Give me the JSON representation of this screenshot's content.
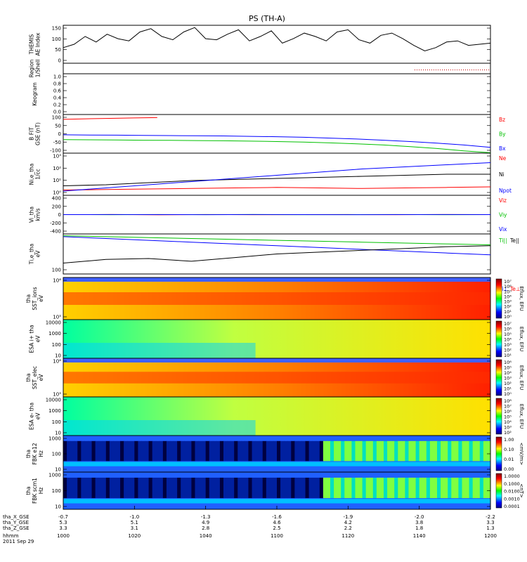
{
  "title": "PS (TH-A)",
  "date_label": "2011 Sep 29",
  "colors": {
    "bx": "#0000ff",
    "by": "#00c000",
    "bz": "#ff0000",
    "ne": "#ff0000",
    "ni": "#000000",
    "npot": "#0000ff"
  },
  "chart_data": {
    "type": "line",
    "x_axis": {
      "label": "hhmm",
      "ticks": [
        "1000",
        "1020",
        "1040",
        "1100",
        "1120",
        "1140",
        "1200"
      ],
      "extra_rows": [
        {
          "label": "tha_X_GSE",
          "values": [
            "-0.7",
            "-1.0",
            "-1.3",
            "-1.6",
            "-1.9",
            "-2.0",
            "-2.2"
          ]
        },
        {
          "label": "tha_Y_GSE",
          "values": [
            "5.3",
            "5.1",
            "4.9",
            "4.6",
            "4.2",
            "3.8",
            "3.3"
          ]
        },
        {
          "label": "tha_Z_GSE",
          "values": [
            "3.3",
            "3.1",
            "2.8",
            "2.5",
            "2.2",
            "1.8",
            "1.3"
          ]
        }
      ]
    },
    "panels": [
      {
        "id": "ae",
        "ylabel": [
          "THEMIS",
          "AE Index"
        ],
        "yticks": [
          "150",
          "100",
          "50",
          "0"
        ],
        "legend": [],
        "series": [
          {
            "color": "#000000",
            "values": [
              60,
              75,
              110,
              85,
              120,
              100,
              90,
              130,
              145,
              110,
              95,
              130,
              150,
              100,
              95,
              120,
              140,
              90,
              110,
              135,
              80,
              100,
              125,
              110,
              90,
              130,
              140,
              95,
              80,
              115,
              125,
              100,
              70,
              45,
              60,
              85,
              90,
              70,
              75,
              80
            ]
          }
        ]
      },
      {
        "id": "region",
        "ylabel": [
          "Region",
          "1/Shell"
        ],
        "yticks": [],
        "legend": [],
        "series": []
      },
      {
        "id": "keogram",
        "ylabel": [
          "Keogram"
        ],
        "yticks": [
          "1.0",
          "0.8",
          "0.6",
          "0.4",
          "0.2",
          "0.0"
        ],
        "legend": [],
        "series": []
      },
      {
        "id": "bfield",
        "ylabel": [
          "B FIT",
          "GSE (nT)"
        ],
        "yticks": [
          "100",
          "50",
          "0",
          "-50",
          "-100"
        ],
        "legend": [
          "Bz",
          "By",
          "Bx"
        ],
        "series": [
          {
            "name": "Bz",
            "color": "#ff0000",
            "values": [
              75,
              78,
              80,
              82,
              84
            ]
          },
          {
            "name": "By",
            "color": "#00c000",
            "values": [
              -30,
              -31,
              -32,
              -33,
              -34,
              -35,
              -36,
              -38,
              -40,
              -43,
              -47,
              -52,
              -58,
              -66,
              -76,
              -88,
              -98
            ]
          },
          {
            "name": "Bx",
            "color": "#0000ff",
            "values": [
              -5,
              -6,
              -7,
              -8,
              -9,
              -10,
              -11,
              -13,
              -15,
              -18,
              -22,
              -27,
              -33,
              -40,
              -48,
              -58,
              -70
            ]
          }
        ]
      },
      {
        "id": "density",
        "ylabel": [
          "Ni,e_tha",
          "1/cc"
        ],
        "yticks": [
          "10³",
          "10²",
          "10¹",
          "10⁰"
        ],
        "legend": [
          "Ne",
          "Ni",
          "Npot"
        ],
        "series": [
          {
            "name": "Ne",
            "color": "#ff0000",
            "values": [
              0.0,
              0.05,
              0.1,
              0.15,
              0.2,
              0.25,
              0.2,
              0.15,
              0.2,
              0.25,
              0.3
            ]
          },
          {
            "name": "Ni",
            "color": "#000000",
            "values": [
              0.4,
              0.5,
              0.7,
              0.9,
              1.0,
              1.1,
              1.2,
              1.3,
              1.4,
              1.5,
              1.5
            ]
          },
          {
            "name": "Npot",
            "color": "#0000ff",
            "values": [
              -0.1,
              0.2,
              0.5,
              0.8,
              1.1,
              1.4,
              1.7,
              2.0,
              2.2,
              2.4,
              2.6
            ]
          }
        ]
      },
      {
        "id": "velocity",
        "ylabel": [
          "Vi_tha",
          "km/s"
        ],
        "yticks": [
          "400",
          "200",
          "0",
          "-200",
          "-400"
        ],
        "legend": [
          "Viz",
          "Viy",
          "Vix"
        ],
        "series": [
          {
            "name": "Viz",
            "color": "#ff0000",
            "values": [
              0,
              2,
              -3,
              1,
              -1,
              0,
              2,
              -2,
              1,
              0
            ]
          },
          {
            "name": "Viy",
            "color": "#00c000",
            "values": [
              0,
              -1,
              1,
              0,
              2,
              -1,
              0,
              1,
              -2,
              0
            ]
          },
          {
            "name": "Vix",
            "color": "#0000ff",
            "values": [
              0,
              1,
              0,
              -1,
              1,
              0,
              -1,
              0,
              1,
              0
            ]
          }
        ]
      },
      {
        "id": "temp",
        "ylabel": [
          "Ti,e_tha",
          "eV"
        ],
        "yticks": [
          "100"
        ],
        "legend": [
          "Ti||",
          "Te||",
          "Ti⊥",
          "Te⊥"
        ],
        "series": [
          {
            "name": "Ti||",
            "color": "#00c000",
            "values": [
              3.9,
              3.85,
              3.8,
              3.75,
              3.7,
              3.65,
              3.6,
              3.55,
              3.5,
              3.45,
              3.4
            ]
          },
          {
            "name": "Ti⊥",
            "color": "#0000ff",
            "values": [
              3.85,
              3.75,
              3.65,
              3.55,
              3.45,
              3.35,
              3.25,
              3.15,
              3.05,
              2.95,
              2.85
            ]
          },
          {
            "name": "Te||",
            "color": "#000000",
            "values": [
              2.4,
              2.6,
              2.65,
              2.5,
              2.7,
              2.9,
              3.0,
              3.1,
              3.2,
              3.3,
              3.35
            ]
          }
        ]
      },
      {
        "id": "sst_ions",
        "ylabel": [
          "tha",
          "SST_ions",
          "eV"
        ],
        "yticks": [
          "10⁶",
          "10⁵"
        ],
        "cbar": [
          "10⁷",
          "10⁶",
          "10⁵",
          "10⁴",
          "10³",
          "10²",
          "10¹",
          "10⁰"
        ],
        "cbar_label": "Eflux, EFU"
      },
      {
        "id": "esa_ions",
        "ylabel": [
          "ESA i+ tha",
          "eV"
        ],
        "yticks": [
          "10000",
          "1000",
          "100",
          "10"
        ],
        "cbar": [
          "10⁷",
          "10⁶",
          "10⁵",
          "10⁴",
          "10³",
          "10²",
          "10¹"
        ],
        "cbar_label": "Eflux, EFU"
      },
      {
        "id": "sst_elec",
        "ylabel": [
          "tha",
          "SST_elec",
          "eV"
        ],
        "yticks": [
          "10⁶",
          "10⁵"
        ],
        "cbar": [
          "10⁶",
          "10⁵",
          "10⁴",
          "10³",
          "10²",
          "10¹",
          "10⁰"
        ],
        "cbar_label": "Eflux, EFU"
      },
      {
        "id": "esa_elec",
        "ylabel": [
          "ESA e- tha",
          "eV"
        ],
        "yticks": [
          "10000",
          "1000",
          "100",
          "10"
        ],
        "cbar": [
          "10⁸",
          "10⁷",
          "10⁶",
          "10⁵",
          "10⁴",
          "10³",
          "10²"
        ],
        "cbar_label": "Eflux, EFU"
      },
      {
        "id": "fbk_efi",
        "ylabel": [
          "tha",
          "FBK e12",
          "Hz"
        ],
        "yticks": [
          "1000",
          "100",
          "10"
        ],
        "cbar": [
          "1.00",
          "0.10",
          "0.01",
          "0.00"
        ],
        "cbar_label": "<mV/m>"
      },
      {
        "id": "fbk_scm",
        "ylabel": [
          "tha",
          "FBK scm1",
          "Hz"
        ],
        "yticks": [
          "1000",
          "100",
          "10"
        ],
        "cbar": [
          "1.0000",
          "0.1000",
          "0.0100",
          "0.0010",
          "0.0001"
        ],
        "cbar_label": "<nT>"
      }
    ]
  }
}
